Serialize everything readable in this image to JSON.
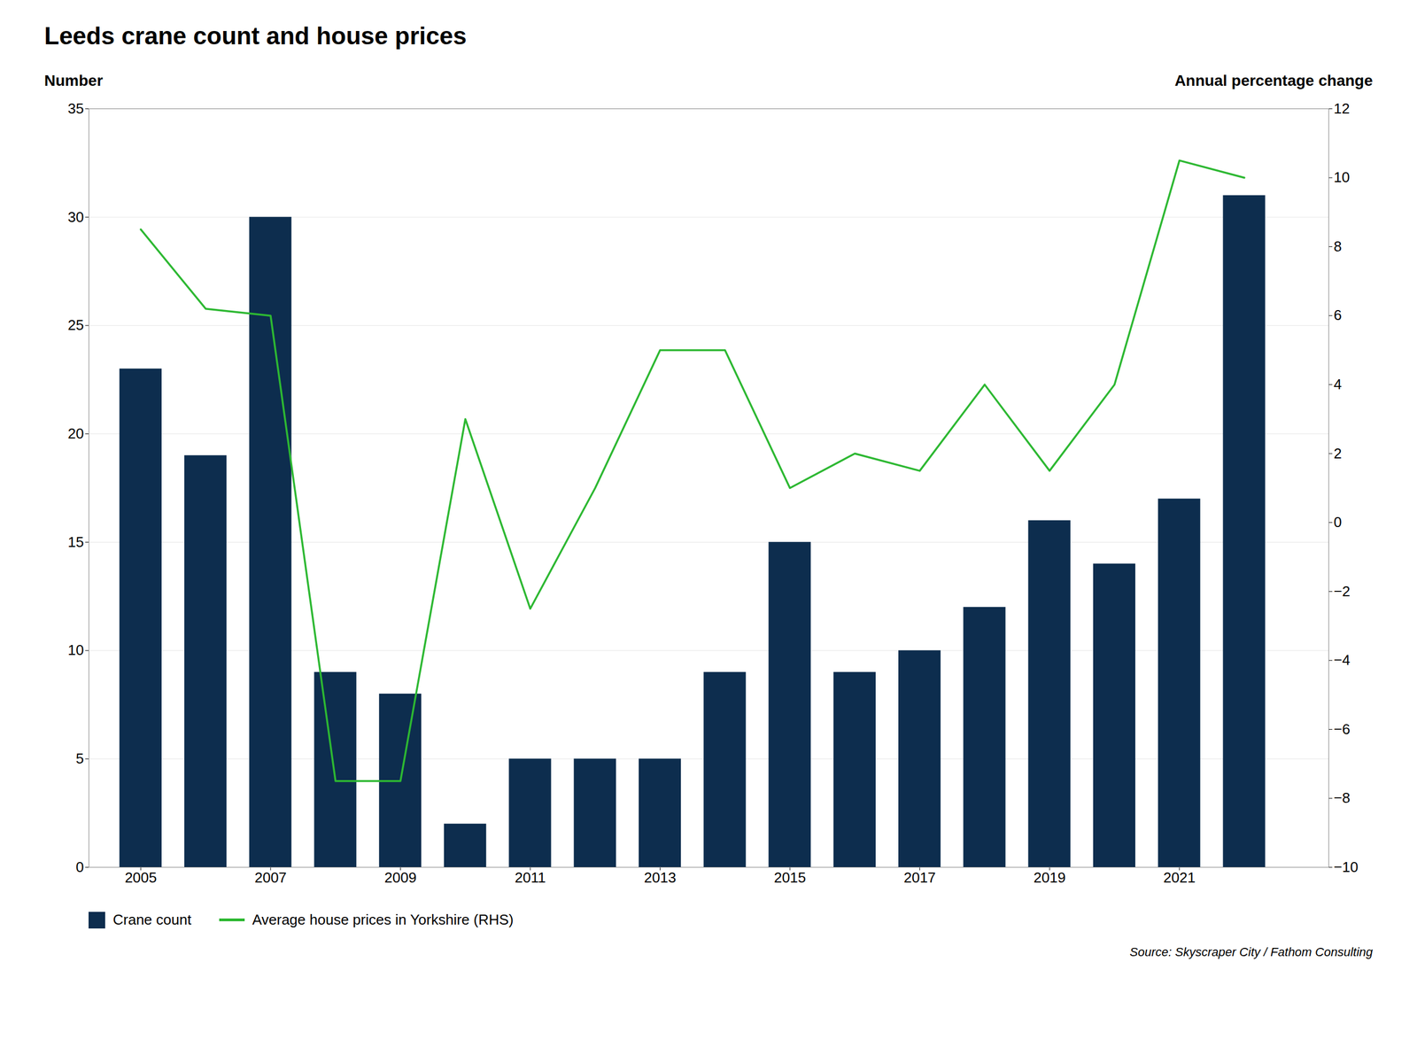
{
  "chart_data": {
    "type": "bar",
    "title": "Leeds crane count and house prices",
    "ylabel": "Number",
    "y2label": "Annual percentage change",
    "source": "Source: Skyscraper City / Fathom Consulting",
    "x": [
      2005,
      2006,
      2007,
      2008,
      2009,
      2010,
      2011,
      2012,
      2013,
      2014,
      2015,
      2016,
      2017,
      2018,
      2019,
      2020,
      2021,
      2022
    ],
    "series": [
      {
        "name": "Crane count",
        "type": "bar",
        "color": "#0d2d4e",
        "values": [
          23,
          19,
          30,
          9,
          8,
          2,
          5,
          5,
          5,
          9,
          15,
          9,
          10,
          12,
          16,
          14,
          17,
          31
        ]
      },
      {
        "name": "Average house prices in Yorkshire (RHS)",
        "type": "line",
        "axis": "y2",
        "color": "#2db832",
        "values": [
          8.5,
          6.2,
          6.0,
          -7.5,
          -7.5,
          3.0,
          -2.5,
          1.0,
          5.0,
          5.0,
          1.0,
          2.0,
          1.5,
          4.0,
          1.5,
          4.0,
          10.5,
          10.0
        ]
      }
    ],
    "xlim": [
      2004.2,
      2023.3
    ],
    "xticks": [
      2005,
      2007,
      2009,
      2011,
      2013,
      2015,
      2017,
      2019,
      2021
    ],
    "ylim": [
      0,
      35
    ],
    "yticks": [
      0,
      5,
      10,
      15,
      20,
      25,
      30,
      35
    ],
    "y2lim": [
      -10,
      12
    ],
    "y2ticks": [
      -10,
      -8,
      -6,
      -4,
      -2,
      0,
      2,
      4,
      6,
      8,
      10,
      12
    ],
    "grid": true,
    "legend": "bottom"
  }
}
